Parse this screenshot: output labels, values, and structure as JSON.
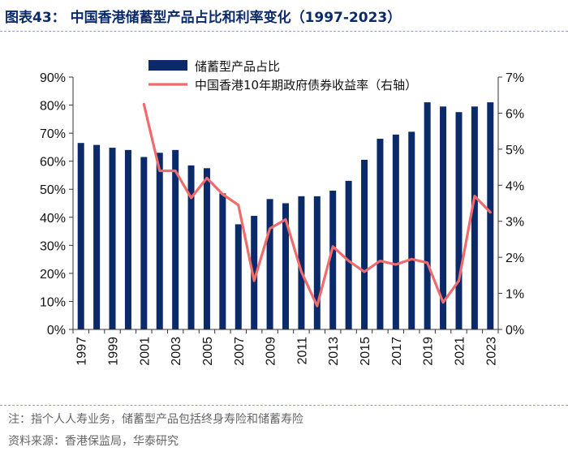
{
  "title": "图表43：  中国香港储蓄型产品占比和利率变化（1997-2023）",
  "note": "注：指个人人寿业务，储蓄型产品包括终身寿险和储蓄寿险",
  "source": "资料来源：香港保监局，华泰研究",
  "colors": {
    "bar": "#0b2a6a",
    "line": "#f06b6b",
    "title": "#0b2a6a"
  },
  "chart_data": {
    "type": "bar",
    "title": "",
    "xlabel": "",
    "ylabel": "",
    "x": [
      1997,
      1998,
      1999,
      2000,
      2001,
      2002,
      2003,
      2004,
      2005,
      2006,
      2007,
      2008,
      2009,
      2010,
      2011,
      2012,
      2013,
      2014,
      2015,
      2016,
      2017,
      2018,
      2019,
      2020,
      2021,
      2022,
      2023
    ],
    "x_tick_labels": [
      "1997",
      "1999",
      "2001",
      "2003",
      "2005",
      "2007",
      "2009",
      "2011",
      "2013",
      "2015",
      "2017",
      "2019",
      "2021",
      "2023"
    ],
    "ylim": [
      0,
      90
    ],
    "y_tick_labels": [
      "0%",
      "10%",
      "20%",
      "30%",
      "40%",
      "50%",
      "60%",
      "70%",
      "80%",
      "90%"
    ],
    "y2lim": [
      0,
      7
    ],
    "y2_tick_labels": [
      "0%",
      "1%",
      "2%",
      "3%",
      "4%",
      "5%",
      "6%",
      "7%"
    ],
    "legend_position": "top",
    "grid": false,
    "series": [
      {
        "name": "储蓄型产品占比",
        "type": "bar",
        "axis": "left",
        "values": [
          66.5,
          65.8,
          64.8,
          64.0,
          61.5,
          63.0,
          64.0,
          58.5,
          57.5,
          48.5,
          37.5,
          40.5,
          46.5,
          45.0,
          47.5,
          47.5,
          49.5,
          53.0,
          60.5,
          68.0,
          69.5,
          70.5,
          81.0,
          79.5,
          77.5,
          79.5,
          81.0
        ]
      },
      {
        "name": "中国香港10年期政府债券收益率（右轴）",
        "type": "line",
        "axis": "right",
        "x": [
          2001,
          2002,
          2003,
          2004,
          2005,
          2006,
          2007,
          2008,
          2009,
          2010,
          2011,
          2012,
          2013,
          2014,
          2015,
          2016,
          2017,
          2018,
          2019,
          2020,
          2021,
          2022,
          2023
        ],
        "values": [
          6.25,
          4.4,
          4.4,
          3.65,
          4.2,
          3.75,
          3.45,
          1.35,
          2.8,
          3.05,
          1.6,
          0.65,
          2.3,
          1.9,
          1.6,
          1.9,
          1.8,
          1.95,
          1.85,
          0.75,
          1.35,
          3.7,
          3.25
        ]
      }
    ]
  }
}
